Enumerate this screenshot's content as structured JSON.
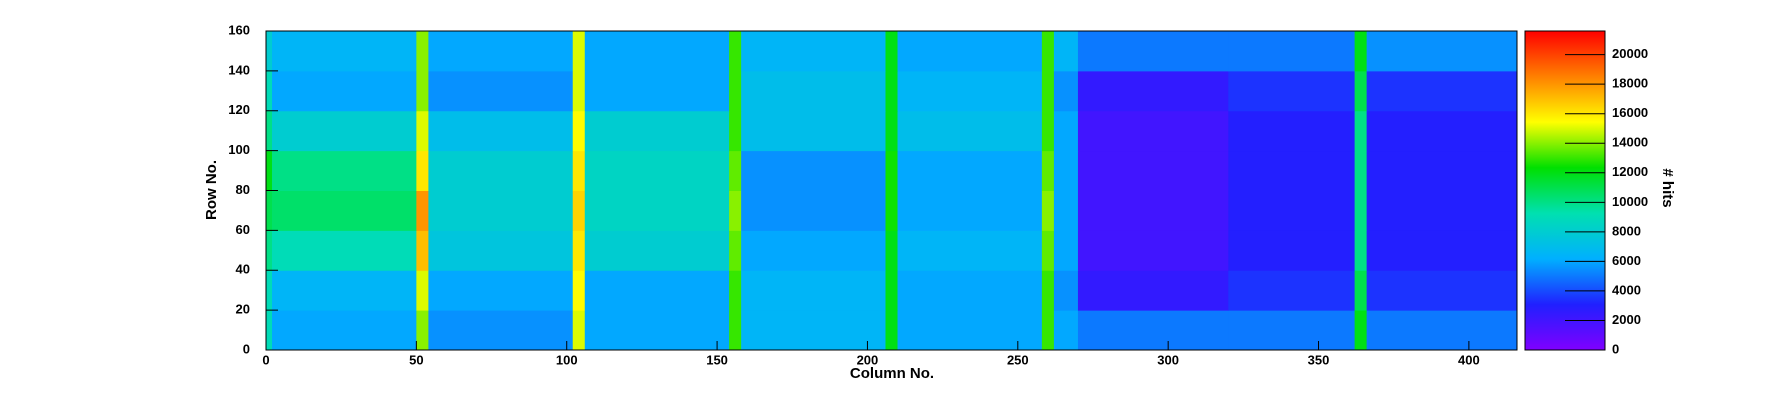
{
  "chart_data": {
    "type": "heatmap",
    "x_label": "Column No.",
    "y_label": "Row No.",
    "z_label": "# hits",
    "xlim": [
      0,
      416
    ],
    "ylim": [
      0,
      160
    ],
    "zlim": [
      0,
      21600
    ],
    "xticks": [
      0,
      50,
      100,
      150,
      200,
      250,
      300,
      350,
      400
    ],
    "yticks": [
      0,
      20,
      40,
      60,
      80,
      100,
      120,
      140,
      160
    ],
    "zticks": [
      0,
      2000,
      4000,
      6000,
      8000,
      10000,
      12000,
      14000,
      16000,
      18000,
      20000
    ],
    "colormap": [
      "#7f00ff",
      "#2020ff",
      "#00b0ff",
      "#00e0b0",
      "#00e000",
      "#ffff00",
      "#ff8000",
      "#ff0000"
    ],
    "xbins": [
      0,
      2,
      50,
      54,
      102,
      106,
      154,
      158,
      206,
      210,
      258,
      262,
      270,
      320,
      362,
      366,
      416
    ],
    "ybins": [
      0,
      20,
      40,
      60,
      80,
      100,
      120,
      140,
      160
    ],
    "z": [
      [
        9000,
        6000,
        14000,
        5500,
        15000,
        6000,
        13000,
        6500,
        12000,
        6000,
        13000,
        6000,
        5000,
        5000,
        12000,
        5000
      ],
      [
        9000,
        6500,
        15000,
        6000,
        15500,
        6000,
        13000,
        6500,
        12000,
        6000,
        13000,
        5500,
        2500,
        3500,
        11000,
        3500
      ],
      [
        10000,
        9000,
        17000,
        7500,
        16000,
        8000,
        13500,
        6000,
        12000,
        6500,
        13500,
        6000,
        2000,
        3000,
        10000,
        3000
      ],
      [
        11000,
        10500,
        18000,
        8000,
        16500,
        8500,
        14000,
        5500,
        12500,
        6000,
        14000,
        6000,
        2000,
        3000,
        10000,
        3000
      ],
      [
        12000,
        10000,
        16000,
        8000,
        16000,
        8500,
        13500,
        5500,
        12500,
        6000,
        13500,
        6000,
        2000,
        3000,
        10000,
        3000
      ],
      [
        10000,
        8000,
        15000,
        7000,
        15500,
        8000,
        13000,
        7000,
        12000,
        7000,
        13000,
        6000,
        2000,
        3000,
        10000,
        3000
      ],
      [
        9000,
        6000,
        14000,
        5500,
        15000,
        6000,
        13000,
        7000,
        12000,
        6500,
        13000,
        5500,
        2500,
        3500,
        11000,
        3500
      ],
      [
        8000,
        6500,
        14000,
        6000,
        15000,
        6000,
        13000,
        6500,
        12000,
        6000,
        13000,
        6500,
        5000,
        5000,
        12000,
        5500
      ]
    ]
  }
}
